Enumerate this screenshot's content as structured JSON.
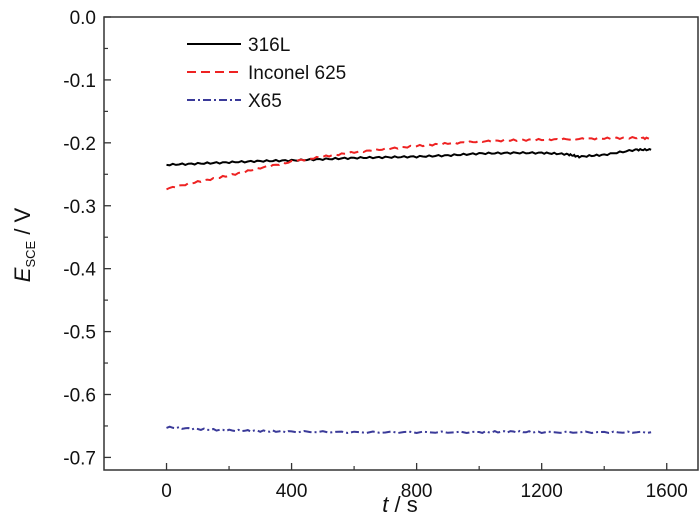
{
  "chart_data": {
    "type": "line",
    "xlabel": {
      "italic": "t",
      "rest": " / s"
    },
    "ylabel": {
      "italic": "E",
      "sub": "SCE",
      "rest": " / V"
    },
    "xlim": [
      -200,
      1700
    ],
    "ylim": [
      -0.72,
      0.0
    ],
    "xticks": [
      0,
      400,
      800,
      1200,
      1600
    ],
    "xtick_labels": [
      "0",
      "400",
      "800",
      "1200",
      "1600"
    ],
    "yticks": [
      0.0,
      -0.1,
      -0.2,
      -0.3,
      -0.4,
      -0.5,
      -0.6,
      -0.7
    ],
    "ytick_labels": [
      "0.0",
      "-0.1",
      "-0.2",
      "-0.3",
      "-0.4",
      "-0.5",
      "-0.6",
      "-0.7"
    ],
    "grid": false,
    "legend_placement": "top-left",
    "series": [
      {
        "name": "316L",
        "color": "#000000",
        "style": "solid",
        "x": [
          0,
          100,
          200,
          300,
          400,
          500,
          600,
          700,
          800,
          900,
          1000,
          1100,
          1200,
          1280,
          1320,
          1400,
          1500,
          1550
        ],
        "y": [
          -0.235,
          -0.233,
          -0.231,
          -0.229,
          -0.228,
          -0.226,
          -0.224,
          -0.223,
          -0.222,
          -0.22,
          -0.217,
          -0.216,
          -0.216,
          -0.218,
          -0.222,
          -0.219,
          -0.211,
          -0.211
        ]
      },
      {
        "name": "Inconel 625",
        "color": "#ee2222",
        "style": "dashed",
        "x": [
          0,
          100,
          200,
          300,
          400,
          500,
          600,
          700,
          800,
          900,
          1000,
          1100,
          1200,
          1300,
          1400,
          1500,
          1550
        ],
        "y": [
          -0.273,
          -0.262,
          -0.252,
          -0.24,
          -0.23,
          -0.222,
          -0.215,
          -0.21,
          -0.205,
          -0.201,
          -0.198,
          -0.196,
          -0.195,
          -0.194,
          -0.193,
          -0.192,
          -0.193
        ]
      },
      {
        "name": "X65",
        "color": "#3a3a99",
        "style": "dash-dot",
        "x": [
          0,
          100,
          200,
          300,
          400,
          600,
          800,
          1000,
          1100,
          1200,
          1400,
          1550
        ],
        "y": [
          -0.652,
          -0.655,
          -0.657,
          -0.658,
          -0.659,
          -0.66,
          -0.66,
          -0.66,
          -0.659,
          -0.66,
          -0.66,
          -0.66
        ]
      }
    ]
  }
}
